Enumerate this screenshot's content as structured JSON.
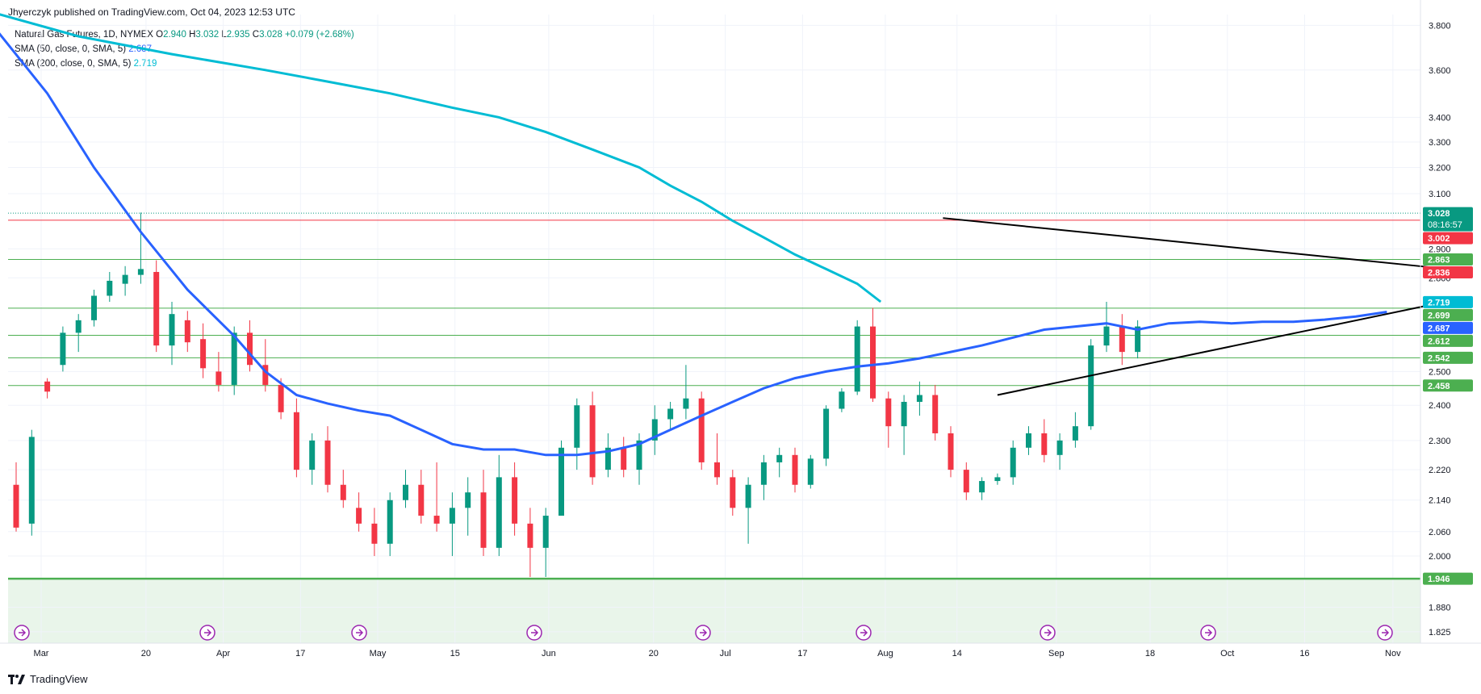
{
  "header": {
    "publisher": "Jhyerczyk published on TradingView.com, Oct 04, 2023 12:53 UTC",
    "symbol": "Natural Gas Futures, 1D, NYMEX",
    "ohlc": {
      "o_label": "O",
      "o": "2.940",
      "h_label": "H",
      "h": "3.032",
      "l_label": "L",
      "l": "2.935",
      "c_label": "C",
      "c": "3.028",
      "change": "+0.079 (+2.68%)"
    },
    "sma50": {
      "label": "SMA (50, close, 0, SMA, 5)",
      "value": "2.687"
    },
    "sma200": {
      "label": "SMA (200, close, 0, SMA, 5)",
      "value": "2.719"
    }
  },
  "footer": {
    "logo_text": "TradingView"
  },
  "colors": {
    "up": "#089981",
    "down": "#f23645",
    "sma50": "#2962ff",
    "sma200": "#00bcd4",
    "level_line": "#4caf50",
    "resistance": "#f23645"
  },
  "chart_data": {
    "type": "candlestick",
    "title": "Natural Gas Futures, 1D, NYMEX",
    "y_axis": {
      "scale": "log",
      "side": "right",
      "ticks": [
        3.8,
        3.6,
        3.4,
        3.3,
        3.2,
        3.1,
        2.9,
        2.8,
        2.5,
        2.4,
        2.3,
        2.22,
        2.14,
        2.06,
        2.0,
        1.88,
        1.825
      ],
      "tick_labels": [
        "3.800",
        "3.600",
        "3.400",
        "3.300",
        "3.200",
        "3.100",
        "2.900",
        "2.800",
        "2.500",
        "2.400",
        "2.300",
        "2.220",
        "2.140",
        "2.060",
        "2.000",
        "1.880",
        "1.825"
      ]
    },
    "x_axis": {
      "ticks": [
        {
          "label": "Mar",
          "date": "2023-03-01"
        },
        {
          "label": "20",
          "date": "2023-03-20"
        },
        {
          "label": "Apr",
          "date": "2023-04-03"
        },
        {
          "label": "17",
          "date": "2023-04-17"
        },
        {
          "label": "May",
          "date": "2023-05-01"
        },
        {
          "label": "15",
          "date": "2023-05-15"
        },
        {
          "label": "Jun",
          "date": "2023-06-01"
        },
        {
          "label": "20",
          "date": "2023-06-20"
        },
        {
          "label": "Jul",
          "date": "2023-07-03"
        },
        {
          "label": "17",
          "date": "2023-07-17"
        },
        {
          "label": "Aug",
          "date": "2023-08-01"
        },
        {
          "label": "14",
          "date": "2023-08-14"
        },
        {
          "label": "Sep",
          "date": "2023-09-01"
        },
        {
          "label": "18",
          "date": "2023-09-18"
        },
        {
          "label": "Oct",
          "date": "2023-10-02"
        },
        {
          "label": "16",
          "date": "2023-10-16"
        },
        {
          "label": "Nov",
          "date": "2023-11-01"
        }
      ]
    },
    "levels": [
      {
        "value": 3.028,
        "label": "3.028",
        "extra": "08:16:57",
        "color": "#089981",
        "type": "last_price"
      },
      {
        "value": 3.002,
        "label": "3.002",
        "color": "#f23645",
        "type": "resistance"
      },
      {
        "value": 2.863,
        "label": "2.863",
        "color": "#4caf50",
        "type": "support"
      },
      {
        "value": 2.836,
        "label": "2.836",
        "color": "#f23645",
        "type": "marker"
      },
      {
        "value": 2.719,
        "label": "2.719",
        "color": "#00bcd4",
        "type": "sma200"
      },
      {
        "value": 2.699,
        "label": "2.699",
        "color": "#4caf50",
        "type": "support"
      },
      {
        "value": 2.687,
        "label": "2.687",
        "color": "#2962ff",
        "type": "sma50"
      },
      {
        "value": 2.612,
        "label": "2.612",
        "color": "#4caf50",
        "type": "support"
      },
      {
        "value": 2.542,
        "label": "2.542",
        "color": "#4caf50",
        "type": "support"
      },
      {
        "value": 2.458,
        "label": "2.458",
        "color": "#4caf50",
        "type": "support"
      },
      {
        "value": 1.946,
        "label": "1.946",
        "color": "#4caf50",
        "type": "major_support"
      }
    ],
    "sma200": [
      [
        -2,
        3.87
      ],
      [
        4,
        3.75
      ],
      [
        10,
        3.67
      ],
      [
        16,
        3.6
      ],
      [
        20,
        3.55
      ],
      [
        24,
        3.5
      ],
      [
        28,
        3.44
      ],
      [
        31,
        3.4
      ],
      [
        34,
        3.34
      ],
      [
        37,
        3.27
      ],
      [
        40,
        3.2
      ],
      [
        42,
        3.13
      ],
      [
        44,
        3.07
      ],
      [
        46,
        3.0
      ],
      [
        48,
        2.94
      ],
      [
        50,
        2.88
      ],
      [
        52,
        2.83
      ],
      [
        54,
        2.78
      ],
      [
        55.5,
        2.72
      ]
    ],
    "sma50": [
      [
        -1.5,
        3.8
      ],
      [
        2,
        3.5
      ],
      [
        5,
        3.2
      ],
      [
        8,
        2.96
      ],
      [
        11,
        2.76
      ],
      [
        14,
        2.61
      ],
      [
        16,
        2.5
      ],
      [
        18,
        2.43
      ],
      [
        20,
        2.405
      ],
      [
        22,
        2.385
      ],
      [
        24,
        2.37
      ],
      [
        26,
        2.33
      ],
      [
        28,
        2.29
      ],
      [
        30,
        2.275
      ],
      [
        32,
        2.275
      ],
      [
        34,
        2.26
      ],
      [
        36,
        2.26
      ],
      [
        38,
        2.27
      ],
      [
        40,
        2.29
      ],
      [
        42,
        2.33
      ],
      [
        44,
        2.37
      ],
      [
        46,
        2.41
      ],
      [
        48,
        2.45
      ],
      [
        50,
        2.48
      ],
      [
        52,
        2.5
      ],
      [
        54,
        2.515
      ],
      [
        56,
        2.525
      ],
      [
        58,
        2.54
      ],
      [
        60,
        2.56
      ],
      [
        62,
        2.58
      ],
      [
        64,
        2.605
      ],
      [
        66,
        2.63
      ],
      [
        68,
        2.64
      ],
      [
        70,
        2.65
      ],
      [
        72,
        2.63
      ],
      [
        74,
        2.65
      ],
      [
        76,
        2.655
      ],
      [
        78,
        2.65
      ],
      [
        80,
        2.655
      ],
      [
        82,
        2.655
      ],
      [
        84,
        2.662
      ],
      [
        86,
        2.672
      ],
      [
        88,
        2.687
      ]
    ],
    "trendlines": [
      {
        "name": "upper",
        "points": [
          [
            59.5,
            3.01
          ],
          [
            91,
            2.835
          ]
        ]
      },
      {
        "name": "lower",
        "points": [
          [
            63,
            2.43
          ],
          [
            91,
            2.712
          ]
        ]
      }
    ],
    "candles": [
      [
        2.18,
        2.24,
        2.06,
        2.07
      ],
      [
        2.08,
        2.33,
        2.05,
        2.31
      ],
      [
        2.47,
        2.48,
        2.42,
        2.44
      ],
      [
        2.52,
        2.64,
        2.5,
        2.62
      ],
      [
        2.62,
        2.68,
        2.56,
        2.66
      ],
      [
        2.66,
        2.76,
        2.64,
        2.74
      ],
      [
        2.74,
        2.82,
        2.72,
        2.79
      ],
      [
        2.78,
        2.84,
        2.74,
        2.81
      ],
      [
        2.81,
        3.03,
        2.78,
        2.83
      ],
      [
        2.82,
        2.86,
        2.56,
        2.58
      ],
      [
        2.58,
        2.72,
        2.52,
        2.68
      ],
      [
        2.66,
        2.69,
        2.56,
        2.59
      ],
      [
        2.6,
        2.65,
        2.48,
        2.51
      ],
      [
        2.5,
        2.56,
        2.44,
        2.46
      ],
      [
        2.46,
        2.64,
        2.43,
        2.62
      ],
      [
        2.62,
        2.66,
        2.5,
        2.52
      ],
      [
        2.52,
        2.6,
        2.44,
        2.46
      ],
      [
        2.46,
        2.48,
        2.36,
        2.38
      ],
      [
        2.38,
        2.42,
        2.2,
        2.22
      ],
      [
        2.22,
        2.32,
        2.18,
        2.3
      ],
      [
        2.3,
        2.34,
        2.16,
        2.18
      ],
      [
        2.18,
        2.22,
        2.12,
        2.14
      ],
      [
        2.12,
        2.16,
        2.06,
        2.08
      ],
      [
        2.08,
        2.12,
        2.0,
        2.03
      ],
      [
        2.03,
        2.16,
        2.0,
        2.14
      ],
      [
        2.14,
        2.22,
        2.12,
        2.18
      ],
      [
        2.18,
        2.22,
        2.08,
        2.1
      ],
      [
        2.1,
        2.24,
        2.06,
        2.08
      ],
      [
        2.08,
        2.16,
        2.0,
        2.12
      ],
      [
        2.12,
        2.2,
        2.05,
        2.16
      ],
      [
        2.16,
        2.22,
        2.0,
        2.02
      ],
      [
        2.02,
        2.26,
        2.0,
        2.2
      ],
      [
        2.2,
        2.24,
        2.05,
        2.08
      ],
      [
        2.08,
        2.12,
        1.95,
        2.02
      ],
      [
        2.02,
        2.12,
        1.95,
        2.1
      ],
      [
        2.1,
        2.3,
        2.1,
        2.28
      ],
      [
        2.28,
        2.42,
        2.22,
        2.4
      ],
      [
        2.4,
        2.44,
        2.18,
        2.2
      ],
      [
        2.22,
        2.32,
        2.2,
        2.28
      ],
      [
        2.28,
        2.31,
        2.2,
        2.22
      ],
      [
        2.22,
        2.32,
        2.18,
        2.3
      ],
      [
        2.3,
        2.4,
        2.26,
        2.36
      ],
      [
        2.36,
        2.41,
        2.33,
        2.39
      ],
      [
        2.39,
        2.52,
        2.36,
        2.42
      ],
      [
        2.42,
        2.44,
        2.22,
        2.24
      ],
      [
        2.24,
        2.32,
        2.18,
        2.2
      ],
      [
        2.2,
        2.22,
        2.1,
        2.12
      ],
      [
        2.12,
        2.2,
        2.03,
        2.18
      ],
      [
        2.18,
        2.26,
        2.14,
        2.24
      ],
      [
        2.24,
        2.28,
        2.2,
        2.26
      ],
      [
        2.26,
        2.28,
        2.16,
        2.18
      ],
      [
        2.18,
        2.26,
        2.17,
        2.25
      ],
      [
        2.25,
        2.4,
        2.23,
        2.39
      ],
      [
        2.39,
        2.45,
        2.38,
        2.44
      ],
      [
        2.44,
        2.66,
        2.43,
        2.64
      ],
      [
        2.64,
        2.7,
        2.41,
        2.42
      ],
      [
        2.42,
        2.44,
        2.28,
        2.34
      ],
      [
        2.34,
        2.43,
        2.26,
        2.41
      ],
      [
        2.41,
        2.47,
        2.37,
        2.43
      ],
      [
        2.43,
        2.46,
        2.3,
        2.32
      ],
      [
        2.32,
        2.34,
        2.2,
        2.22
      ],
      [
        2.22,
        2.24,
        2.14,
        2.16
      ],
      [
        2.16,
        2.2,
        2.14,
        2.19
      ],
      [
        2.19,
        2.21,
        2.18,
        2.2
      ],
      [
        2.2,
        2.3,
        2.18,
        2.28
      ],
      [
        2.28,
        2.34,
        2.26,
        2.32
      ],
      [
        2.32,
        2.36,
        2.24,
        2.26
      ],
      [
        2.26,
        2.32,
        2.22,
        2.3
      ],
      [
        2.3,
        2.38,
        2.28,
        2.34
      ],
      [
        2.34,
        2.6,
        2.33,
        2.58
      ],
      [
        2.58,
        2.72,
        2.56,
        2.64
      ],
      [
        2.64,
        2.68,
        2.52,
        2.56
      ],
      [
        2.56,
        2.66,
        2.54,
        2.64
      ]
    ]
  }
}
